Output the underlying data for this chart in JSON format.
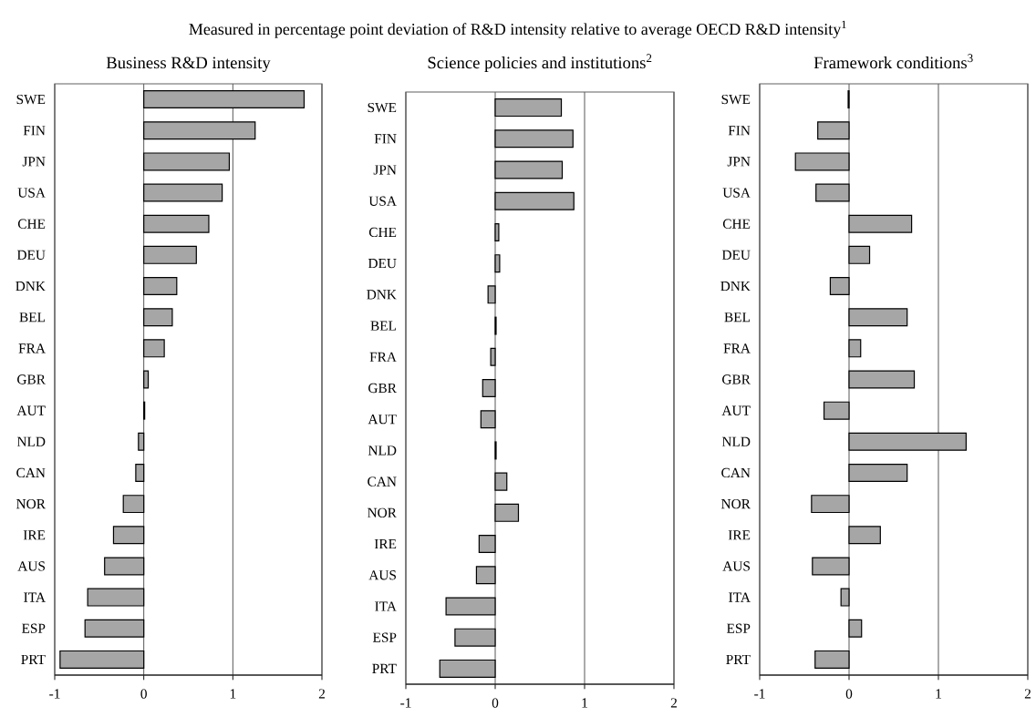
{
  "chart_data": [
    {
      "type": "bar",
      "orientation": "horizontal",
      "subtitle": "Measured in percentage point deviation of R&D intensity relative to average OECD R&D intensity$^{1}$",
      "title": "Business R&D intensity",
      "categories": [
        "SWE",
        "FIN",
        "JPN",
        "USA",
        "CHE",
        "DEU",
        "DNK",
        "BEL",
        "FRA",
        "GBR",
        "AUT",
        "NLD",
        "CAN",
        "NOR",
        "IRE",
        "AUS",
        "ITA",
        "ESP",
        "PRT"
      ],
      "values": [
        1.8,
        1.25,
        0.96,
        0.88,
        0.73,
        0.59,
        0.37,
        0.32,
        0.23,
        0.05,
        0.01,
        -0.06,
        -0.09,
        -0.23,
        -0.34,
        -0.44,
        -0.63,
        -0.66,
        -0.94
      ],
      "color": "#a6a6a6",
      "xlim": [
        -1,
        2
      ],
      "xticks": [
        -1,
        0,
        1,
        2
      ],
      "grid": "x"
    },
    {
      "type": "bar",
      "orientation": "horizontal",
      "title": "Science policies and institutions$^{2}$",
      "categories": [
        "SWE",
        "FIN",
        "JPN",
        "USA",
        "CHE",
        "DEU",
        "DNK",
        "BEL",
        "FRA",
        "GBR",
        "AUT",
        "NLD",
        "CAN",
        "NOR",
        "IRE",
        "AUS",
        "ITA",
        "ESP",
        "PRT"
      ],
      "values": [
        0.74,
        0.87,
        0.75,
        0.88,
        0.04,
        0.05,
        -0.08,
        0.01,
        -0.05,
        -0.14,
        -0.16,
        0.01,
        0.13,
        0.26,
        -0.18,
        -0.21,
        -0.55,
        -0.45,
        -0.62
      ],
      "color": "#a6a6a6",
      "xlim": [
        -1,
        2
      ],
      "xticks": [
        -1,
        0,
        1,
        2
      ],
      "grid": "x"
    },
    {
      "type": "bar",
      "orientation": "horizontal",
      "title": "Framework conditions$^{3}$",
      "categories": [
        "SWE",
        "FIN",
        "JPN",
        "USA",
        "CHE",
        "DEU",
        "DNK",
        "BEL",
        "FRA",
        "GBR",
        "AUT",
        "NLD",
        "CAN",
        "NOR",
        "IRE",
        "AUS",
        "ITA",
        "ESP",
        "PRT"
      ],
      "values": [
        -0.01,
        -0.35,
        -0.6,
        -0.37,
        0.7,
        0.23,
        -0.21,
        0.65,
        0.13,
        0.73,
        -0.28,
        1.31,
        0.65,
        -0.42,
        0.35,
        -0.41,
        -0.09,
        0.14,
        -0.38
      ],
      "color": "#a6a6a6",
      "xlim": [
        -1,
        2
      ],
      "xticks": [
        -1,
        0,
        1,
        2
      ],
      "grid": "x"
    }
  ]
}
